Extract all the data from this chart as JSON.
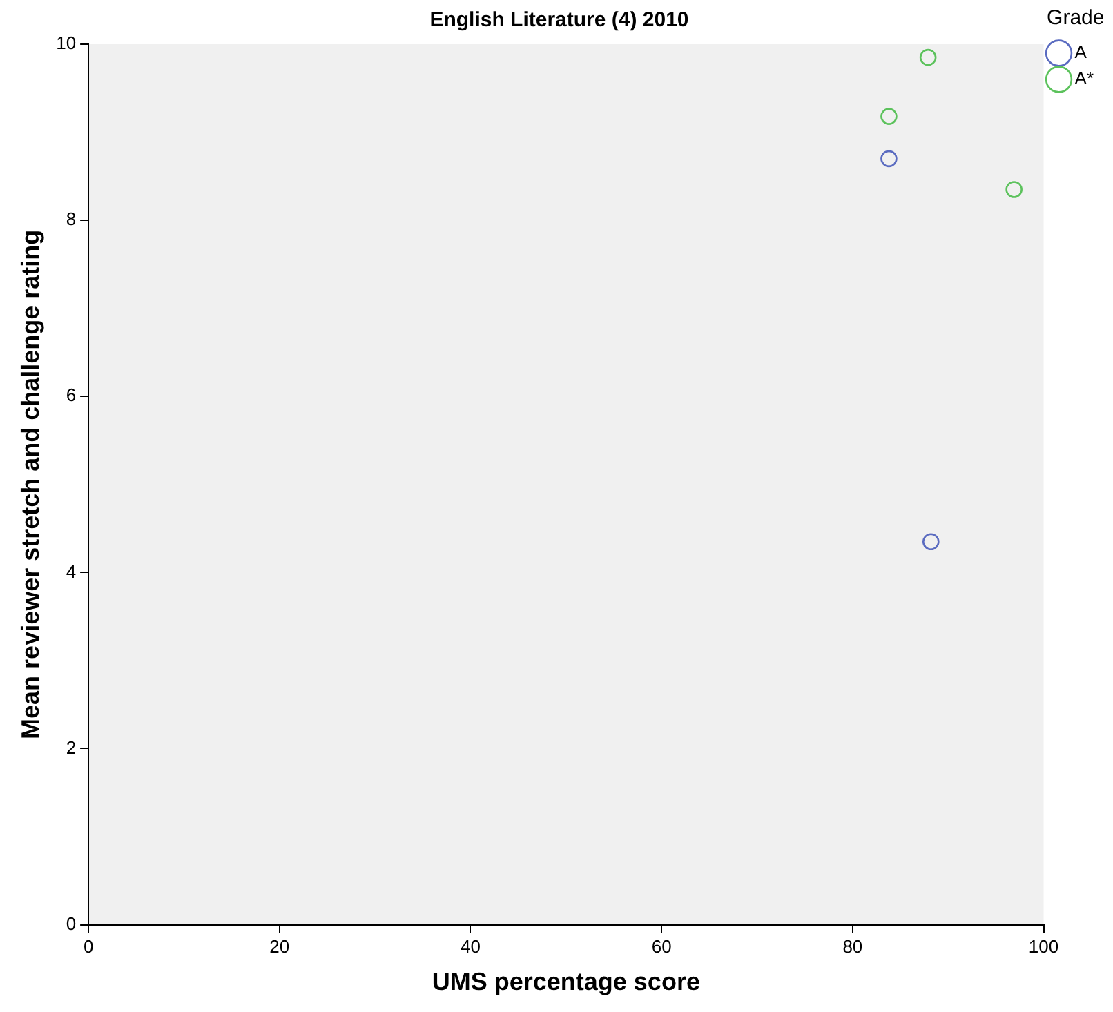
{
  "chart_data": {
    "type": "scatter",
    "title": "English Literature (4) 2010",
    "xlabel": "UMS percentage score",
    "ylabel": "Mean reviewer stretch and challenge rating",
    "legend_title": "Grade",
    "legend": "top right",
    "grid": false,
    "marker": "circle",
    "xlim": [
      0,
      100
    ],
    "xticks": [
      0,
      20,
      40,
      60,
      80,
      100
    ],
    "ylim": [
      0,
      10
    ],
    "yticks": [
      0,
      2,
      4,
      6,
      8,
      10
    ],
    "series": [
      {
        "name": "A",
        "color": "#5a6bc0",
        "x": [
          83.8,
          88.2
        ],
        "values": [
          8.7,
          4.35
        ]
      },
      {
        "name": "A*",
        "color": "#5cc25c",
        "x": [
          87.9,
          83.8,
          96.9
        ],
        "values": [
          9.85,
          9.18,
          8.35
        ]
      }
    ]
  }
}
